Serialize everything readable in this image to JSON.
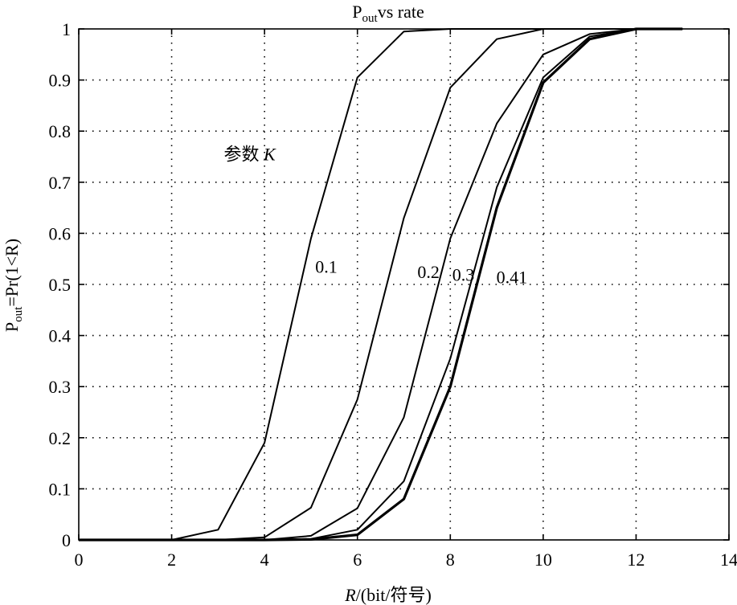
{
  "chart_data": {
    "type": "line",
    "title": "P",
    "title_sub": "out",
    "title_rest": "vs rate",
    "xlabel_italic": "R",
    "xlabel_rest": "/(bit/符号)",
    "ylabel_main": "P",
    "ylabel_sub": "out",
    "ylabel_rest": "=Pr(1<R)",
    "xlim": [
      0,
      14
    ],
    "ylim": [
      0,
      1
    ],
    "xticks": [
      0,
      2,
      4,
      6,
      8,
      10,
      12,
      14
    ],
    "xtick_labels": [
      "0",
      "2",
      "4",
      "6",
      "8",
      "10",
      "12",
      "14"
    ],
    "yticks": [
      0,
      0.1,
      0.2,
      0.3,
      0.4,
      0.5,
      0.6,
      0.7,
      0.8,
      0.9,
      1
    ],
    "ytick_labels": [
      "0",
      "0.1",
      "0.2",
      "0.3",
      "0.4",
      "0.5",
      "0.6",
      "0.7",
      "0.8",
      "0.9",
      "1"
    ],
    "grid": true,
    "x": [
      0,
      1,
      2,
      3,
      4,
      5,
      6,
      7,
      8,
      9,
      10,
      11,
      12,
      13
    ],
    "series": [
      {
        "name": "0.1",
        "values": [
          0,
          0,
          0,
          0.02,
          0.19,
          0.59,
          0.905,
          0.995,
          1,
          1,
          1,
          1,
          1,
          1
        ]
      },
      {
        "name": "0.2",
        "values": [
          0,
          0,
          0,
          0,
          0.005,
          0.063,
          0.275,
          0.63,
          0.885,
          0.98,
          1,
          1,
          1,
          1
        ]
      },
      {
        "name": "0.3",
        "values": [
          0,
          0,
          0,
          0,
          0,
          0.008,
          0.062,
          0.24,
          0.59,
          0.815,
          0.95,
          0.99,
          1,
          1
        ]
      },
      {
        "name": "0.41",
        "values": [
          0,
          0,
          0,
          0,
          0,
          0.002,
          0.02,
          0.115,
          0.355,
          0.69,
          0.905,
          0.985,
          1,
          1
        ]
      },
      {
        "name": "",
        "values": [
          0,
          0,
          0,
          0,
          0,
          0.001,
          0.01,
          0.08,
          0.3,
          0.65,
          0.895,
          0.98,
          1,
          1
        ]
      }
    ],
    "annotations": {
      "param_label": "参数",
      "param_symbol": "K",
      "k_labels": [
        {
          "text": "0.1",
          "x": 5.3,
          "y": 0.535
        },
        {
          "text": "0.2",
          "x": 7.5,
          "y": 0.525
        },
        {
          "text": "0.3",
          "x": 8.25,
          "y": 0.52
        },
        {
          "text": "0.41",
          "x": 9.2,
          "y": 0.515
        }
      ],
      "param_pos": {
        "x": 4.3,
        "y": 0.73
      }
    }
  }
}
